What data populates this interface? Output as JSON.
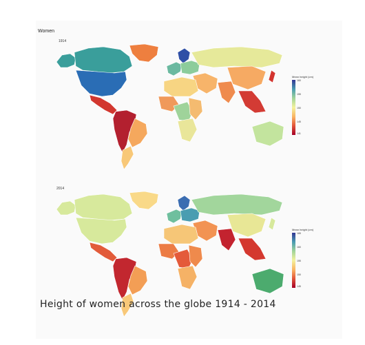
{
  "figure": {
    "title": "Women",
    "caption": "Height of women across the globe 1914 - 2014"
  },
  "maps": [
    {
      "year": "1914",
      "legend_title": "Mean height (cm)",
      "legend_ticks": [
        "160",
        "155",
        "150",
        "145",
        "141"
      ],
      "regions": {
        "north_america": "#2a6db5",
        "canada": "#3a9e9b",
        "alaska": "#3a9e9b",
        "greenland": "#ee7f3f",
        "central_america": "#d2372f",
        "south_america_north": "#b3202f",
        "south_america_east": "#f5a85d",
        "south_america_south": "#f8c878",
        "europe_north": "#2f4fa6",
        "europe_west": "#6bb9a0",
        "europe_central": "#8ccc9b",
        "russia": "#e6e99a",
        "middle_east": "#f7b46a",
        "north_africa": "#f7d583",
        "west_africa": "#f0995a",
        "central_africa": "#9fd39a",
        "east_africa": "#f4bb70",
        "southern_africa": "#e9e69a",
        "south_asia": "#ef8b4e",
        "china": "#f6aa63",
        "southeast_asia": "#d33b34",
        "japan": "#d3342f",
        "australia": "#c3e49e"
      }
    },
    {
      "year": "2014",
      "legend_title": "Mean height (cm)",
      "legend_ticks": [
        "165",
        "160",
        "155",
        "150",
        "145"
      ],
      "regions": {
        "north_america": "#d7e99c",
        "canada": "#d7e99c",
        "alaska": "#d7e99c",
        "greenland": "#f9d988",
        "central_america": "#e25b3a",
        "south_america_north": "#c2272f",
        "south_america_east": "#f39e55",
        "south_america_south": "#f8c878",
        "europe_north": "#3b6db1",
        "europe_west": "#6fbf9e",
        "europe_central": "#4a9db1",
        "russia": "#a2d69c",
        "middle_east": "#f29353",
        "north_africa": "#f6c677",
        "west_africa": "#ec7c45",
        "central_africa": "#e45a3a",
        "east_africa": "#ef8a4c",
        "southern_africa": "#f5b266",
        "south_asia": "#c3232f",
        "china": "#e8e796",
        "southeast_asia": "#d4382f",
        "japan": "#d7e99c",
        "australia": "#4cab6e"
      }
    }
  ],
  "colors": {
    "legend_gradient": [
      "#313695",
      "#4a9db1",
      "#9fd39a",
      "#f3f29c",
      "#f9b462",
      "#e2553a",
      "#a50026"
    ]
  }
}
